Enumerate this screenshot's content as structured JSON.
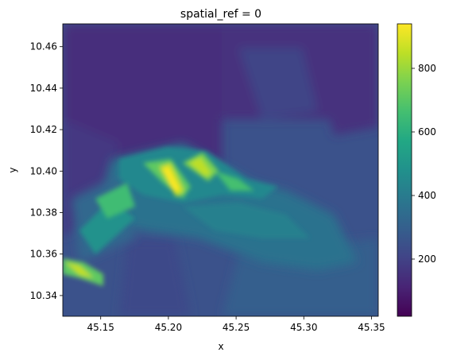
{
  "chart_data": {
    "type": "heatmap",
    "title": "spatial_ref = 0",
    "xlabel": "x",
    "ylabel": "y",
    "xlim": [
      45.122,
      45.355
    ],
    "ylim": [
      10.33,
      10.471
    ],
    "xticks": [
      45.15,
      45.2,
      45.25,
      45.3,
      45.35
    ],
    "xtick_labels": [
      "45.15",
      "45.20",
      "45.25",
      "45.30",
      "45.35"
    ],
    "yticks": [
      10.34,
      10.36,
      10.38,
      10.4,
      10.42,
      10.44,
      10.46
    ],
    "ytick_labels": [
      "10.34",
      "10.36",
      "10.38",
      "10.40",
      "10.42",
      "10.44",
      "10.46"
    ],
    "colorbar": {
      "colormap": "viridis",
      "vmin": 20,
      "vmax": 940,
      "ticks": [
        200,
        400,
        600,
        800
      ],
      "tick_labels": [
        "200",
        "400",
        "600",
        "800"
      ]
    },
    "grid": false,
    "description_of_field": {
      "ridges": [
        {
          "x0": 45.195,
          "y0": 10.398,
          "x1": 45.215,
          "y1": 10.383,
          "peak": 900
        },
        {
          "x0": 45.215,
          "y0": 10.407,
          "x1": 45.232,
          "y1": 10.392,
          "peak": 820
        },
        {
          "x0": 45.122,
          "y0": 10.358,
          "x1": 45.15,
          "y1": 10.348,
          "peak": 780
        }
      ]
    }
  }
}
